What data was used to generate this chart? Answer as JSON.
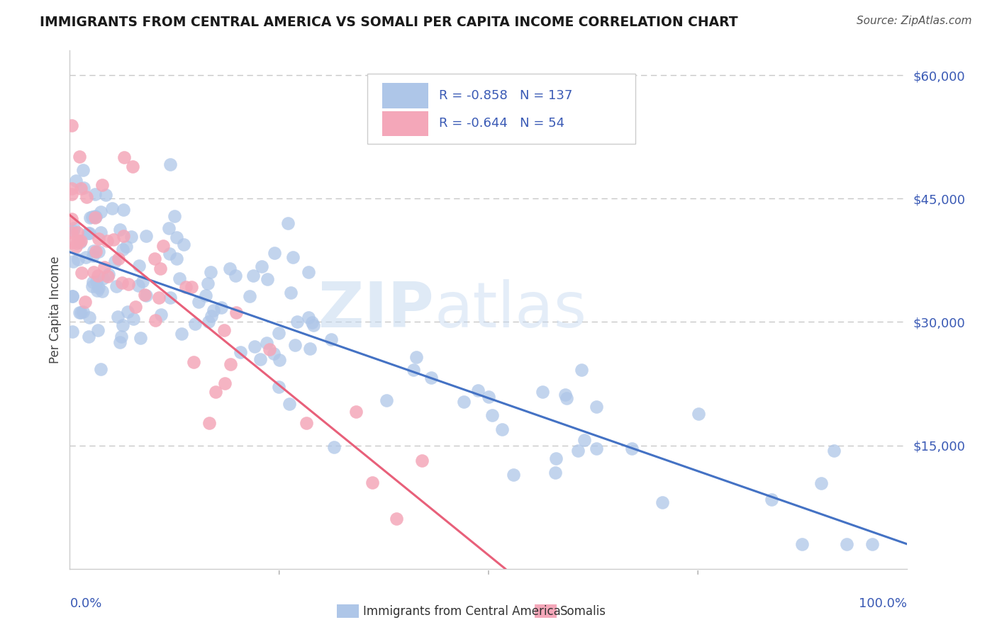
{
  "title": "IMMIGRANTS FROM CENTRAL AMERICA VS SOMALI PER CAPITA INCOME CORRELATION CHART",
  "source": "Source: ZipAtlas.com",
  "ylabel": "Per Capita Income",
  "xmin": 0.0,
  "xmax": 100.0,
  "ymin": 0,
  "ymax": 63000,
  "yticks": [
    0,
    15000,
    30000,
    45000,
    60000
  ],
  "ytick_labels": [
    "",
    "$15,000",
    "$30,000",
    "$45,000",
    "$60,000"
  ],
  "legend_R1": "-0.858",
  "legend_N1": "137",
  "legend_R2": "-0.644",
  "legend_N2": "54",
  "legend_label1": "Immigrants from Central America",
  "legend_label2": "Somalis",
  "blue_line_x0": 0,
  "blue_line_x1": 100,
  "blue_line_y0": 38500,
  "blue_line_y1": 3000,
  "pink_line_x0": 0,
  "pink_line_x1": 52,
  "pink_line_y0": 43000,
  "pink_line_y1": 0,
  "blue_color": "#4472c4",
  "pink_color": "#e8607a",
  "blue_scatter_color": "#aec6e8",
  "pink_scatter_color": "#f4a7b9",
  "grid_color": "#c8c8c8",
  "tick_color": "#3a5ab5",
  "background_color": "#ffffff",
  "watermark_zip_color": "#c5d9f0",
  "watermark_atlas_color": "#c5d9f0"
}
